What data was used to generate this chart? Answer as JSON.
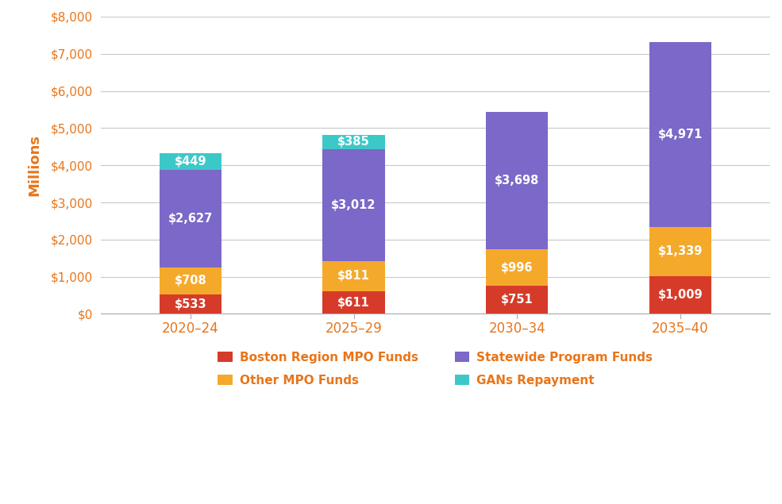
{
  "categories": [
    "2020–24",
    "2025–29",
    "2030–34",
    "2035–40"
  ],
  "boston_mpo": [
    533,
    611,
    751,
    1009
  ],
  "other_mpo": [
    708,
    811,
    996,
    1339
  ],
  "statewide": [
    2627,
    3012,
    3698,
    4971
  ],
  "gans": [
    449,
    385,
    0,
    0
  ],
  "colors": {
    "boston_mpo": "#d63b2a",
    "other_mpo": "#f5a92b",
    "statewide": "#7b68c8",
    "gans": "#3dc8c8"
  },
  "legend_labels": {
    "boston_mpo": "Boston Region MPO Funds",
    "other_mpo": "Other MPO Funds",
    "statewide": "Statewide Program Funds",
    "gans": "GANs Repayment"
  },
  "ylabel": "Millions",
  "ylabel_color": "#e8751a",
  "tick_label_color": "#e8751a",
  "ylim": [
    0,
    8000
  ],
  "yticks": [
    0,
    1000,
    2000,
    3000,
    4000,
    5000,
    6000,
    7000,
    8000
  ],
  "bar_width": 0.38,
  "label_color": "#ffffff",
  "label_fontsize": 10.5,
  "legend_label_color": "#e8751a",
  "legend_fontsize": 11,
  "background_color": "#ffffff",
  "grid_color": "#c8c8c8",
  "spine_color": "#aaaaaa",
  "figsize": [
    9.85,
    6.35
  ],
  "dpi": 100
}
